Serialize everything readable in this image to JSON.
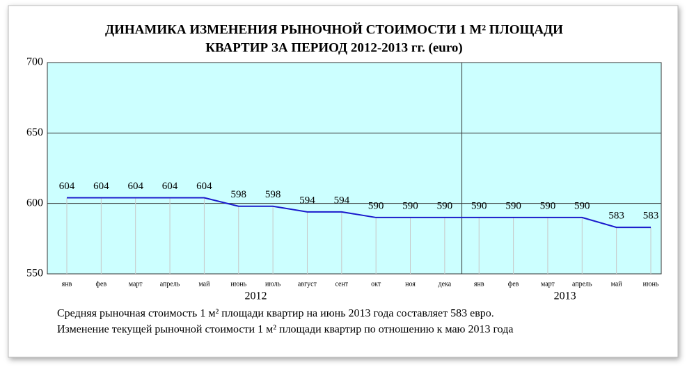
{
  "chart_data": {
    "type": "line",
    "title": [
      "ДИНАМИКА ИЗМЕНЕНИЯ РЫНОЧНОЙ СТОИМОСТИ 1 М² ПЛОЩАДИ",
      "КВАРТИР ЗА ПЕРИОД 2012-2013 гг. (euro)"
    ],
    "categories": [
      "янв",
      "фев",
      "март",
      "апрель",
      "май",
      "июнь",
      "июль",
      "август",
      "сент",
      "окт",
      "ноя",
      "дека",
      "янв",
      "фев",
      "март",
      "апрель",
      "май",
      "июнь"
    ],
    "year_labels": [
      "2012",
      "2013"
    ],
    "values": [
      604,
      604,
      604,
      604,
      604,
      598,
      598,
      594,
      594,
      590,
      590,
      590,
      590,
      590,
      590,
      590,
      583,
      583
    ],
    "color": "#1a1acc",
    "background": "#ccffff",
    "ylim": [
      550,
      700
    ],
    "yticks": [
      550,
      600,
      650,
      700
    ],
    "grid": true,
    "notes": [
      "Средняя рыночная стоимость 1 м² площади квартир на июнь 2013 года составляет 583 евро.",
      "Изменение текущей рыночной стоимости 1 м² площади квартир по отношению к маю 2013 года"
    ]
  }
}
